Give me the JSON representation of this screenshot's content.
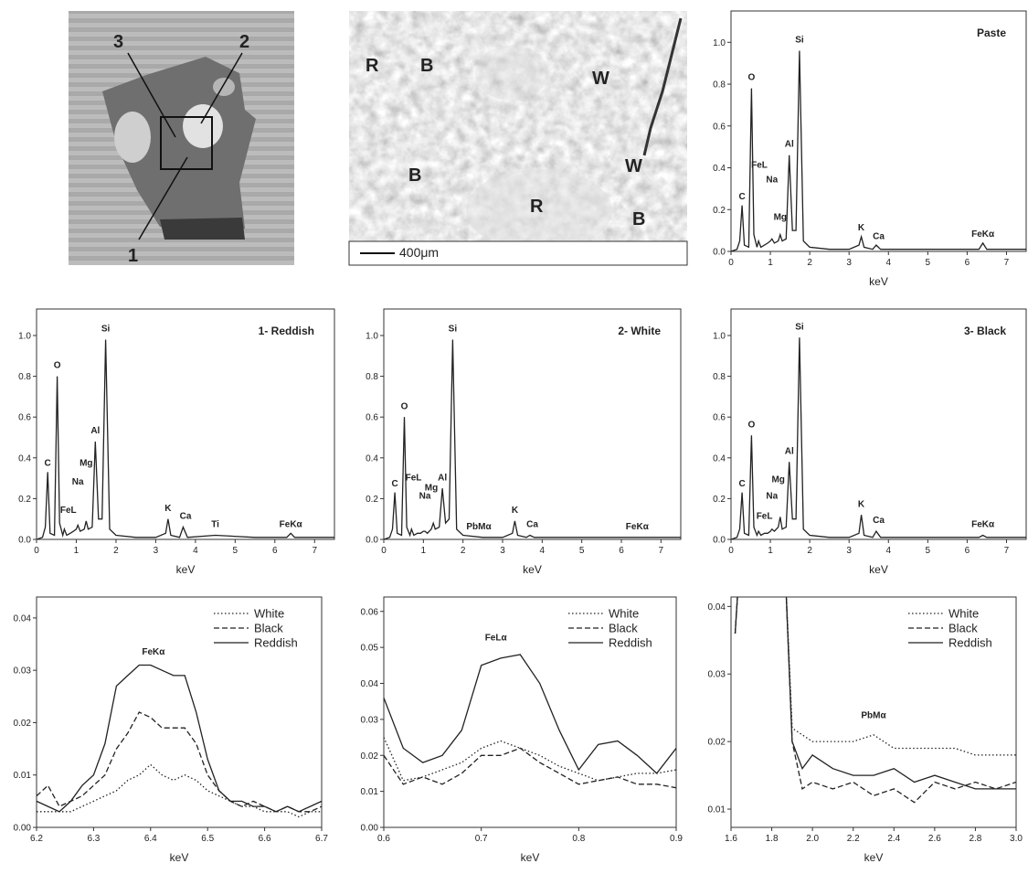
{
  "photo": {
    "labels": [
      "3",
      "2",
      "1"
    ]
  },
  "sem": {
    "labels": [
      "R",
      "B",
      "W",
      "B",
      "W",
      "R",
      "B"
    ],
    "scale_bar": "400μm"
  },
  "chart_data": [
    {
      "type": "line",
      "title": "Paste",
      "xlabel": "keV",
      "color": "#222",
      "xlim": [
        0,
        7.5
      ],
      "ylim": [
        0,
        1.15
      ],
      "xticks": [
        0,
        1,
        2,
        3,
        4,
        5,
        6,
        7
      ],
      "yticks": [
        {
          "value": 0,
          "label": "0.0"
        },
        0.2,
        0.4,
        0.6,
        0.8,
        {
          "value": 1,
          "label": "1.0"
        }
      ],
      "x": [
        0,
        0.15,
        0.22,
        0.28,
        0.34,
        0.45,
        0.52,
        0.58,
        0.66,
        0.7,
        0.76,
        0.85,
        0.93,
        1.0,
        1.04,
        1.1,
        1.2,
        1.25,
        1.3,
        1.4,
        1.48,
        1.56,
        1.65,
        1.74,
        1.84,
        2.0,
        2.5,
        3.0,
        3.25,
        3.31,
        3.38,
        3.6,
        3.69,
        3.8,
        4.5,
        5.5,
        6.3,
        6.4,
        6.5,
        7.0,
        7.5
      ],
      "values": [
        0,
        0.01,
        0.05,
        0.22,
        0.03,
        0.02,
        0.78,
        0.08,
        0.02,
        0.05,
        0.02,
        0.03,
        0.04,
        0.05,
        0.06,
        0.04,
        0.05,
        0.08,
        0.05,
        0.06,
        0.46,
        0.1,
        0.1,
        0.96,
        0.05,
        0.02,
        0.01,
        0.01,
        0.03,
        0.07,
        0.02,
        0.01,
        0.03,
        0.01,
        0.01,
        0.01,
        0.01,
        0.04,
        0.01,
        0.01,
        0.01
      ],
      "annotations": [
        {
          "text": "C",
          "x": 0.28,
          "y": 0.25
        },
        {
          "text": "O",
          "x": 0.52,
          "y": 0.82
        },
        {
          "text": "FeL",
          "x": 0.72,
          "y": 0.4
        },
        {
          "text": "Na",
          "x": 1.04,
          "y": 0.33
        },
        {
          "text": "Mg",
          "x": 1.25,
          "y": 0.15
        },
        {
          "text": "Al",
          "x": 1.48,
          "y": 0.5
        },
        {
          "text": "Si",
          "x": 1.74,
          "y": 1.0
        },
        {
          "text": "K",
          "x": 3.31,
          "y": 0.1
        },
        {
          "text": "Ca",
          "x": 3.75,
          "y": 0.06
        },
        {
          "text": "FeKα",
          "x": 6.4,
          "y": 0.07
        }
      ]
    },
    {
      "type": "line",
      "title": "1- Reddish",
      "xlabel": "keV",
      "color": "#222",
      "xlim": [
        0,
        7.5
      ],
      "ylim": [
        0,
        1.13
      ],
      "xticks": [
        0,
        1,
        2,
        3,
        4,
        5,
        6,
        7
      ],
      "yticks": [
        {
          "value": 0,
          "label": "0.0"
        },
        0.2,
        0.4,
        0.6,
        0.8,
        {
          "value": 1,
          "label": "1.0"
        }
      ],
      "x": [
        0,
        0.15,
        0.22,
        0.28,
        0.34,
        0.45,
        0.52,
        0.58,
        0.66,
        0.7,
        0.76,
        0.85,
        0.93,
        1.0,
        1.04,
        1.1,
        1.2,
        1.25,
        1.3,
        1.4,
        1.48,
        1.56,
        1.65,
        1.74,
        1.84,
        2.0,
        2.5,
        3.0,
        3.25,
        3.31,
        3.38,
        3.6,
        3.69,
        3.8,
        4.5,
        5.5,
        6.3,
        6.4,
        6.5,
        7.0,
        7.5
      ],
      "values": [
        0,
        0.01,
        0.06,
        0.33,
        0.03,
        0.02,
        0.8,
        0.08,
        0.02,
        0.05,
        0.02,
        0.03,
        0.04,
        0.05,
        0.07,
        0.04,
        0.05,
        0.09,
        0.05,
        0.06,
        0.48,
        0.1,
        0.1,
        0.98,
        0.05,
        0.02,
        0.01,
        0.01,
        0.03,
        0.1,
        0.02,
        0.01,
        0.06,
        0.01,
        0.02,
        0.01,
        0.01,
        0.03,
        0.01,
        0.01,
        0.01
      ],
      "annotations": [
        {
          "text": "C",
          "x": 0.28,
          "y": 0.36
        },
        {
          "text": "O",
          "x": 0.52,
          "y": 0.84
        },
        {
          "text": "FeL",
          "x": 0.8,
          "y": 0.13
        },
        {
          "text": "Na",
          "x": 1.04,
          "y": 0.27
        },
        {
          "text": "Mg",
          "x": 1.25,
          "y": 0.36
        },
        {
          "text": "Al",
          "x": 1.48,
          "y": 0.52
        },
        {
          "text": "Si",
          "x": 1.74,
          "y": 1.02
        },
        {
          "text": "K",
          "x": 3.31,
          "y": 0.14
        },
        {
          "text": "Ca",
          "x": 3.75,
          "y": 0.1
        },
        {
          "text": "Ti",
          "x": 4.5,
          "y": 0.06
        },
        {
          "text": "FeKα",
          "x": 6.4,
          "y": 0.06
        }
      ]
    },
    {
      "type": "line",
      "title": "2- White",
      "xlabel": "keV",
      "color": "#222",
      "xlim": [
        0,
        7.5
      ],
      "ylim": [
        0,
        1.13
      ],
      "xticks": [
        0,
        1,
        2,
        3,
        4,
        5,
        6,
        7
      ],
      "yticks": [
        {
          "value": 0,
          "label": "0.0"
        },
        0.2,
        0.4,
        0.6,
        0.8,
        {
          "value": 1,
          "label": "1.0"
        }
      ],
      "x": [
        0,
        0.15,
        0.22,
        0.28,
        0.34,
        0.45,
        0.52,
        0.58,
        0.66,
        0.7,
        0.76,
        0.85,
        0.93,
        1.0,
        1.04,
        1.1,
        1.2,
        1.25,
        1.3,
        1.4,
        1.48,
        1.56,
        1.65,
        1.74,
        1.84,
        2.0,
        2.5,
        3.0,
        3.25,
        3.31,
        3.38,
        3.6,
        3.69,
        3.8,
        4.5,
        5.5,
        6.3,
        6.4,
        6.5,
        7.0,
        7.5
      ],
      "values": [
        0,
        0.01,
        0.05,
        0.23,
        0.03,
        0.02,
        0.6,
        0.06,
        0.02,
        0.05,
        0.02,
        0.03,
        0.03,
        0.04,
        0.04,
        0.03,
        0.05,
        0.08,
        0.05,
        0.06,
        0.25,
        0.08,
        0.1,
        0.98,
        0.05,
        0.02,
        0.01,
        0.01,
        0.03,
        0.09,
        0.02,
        0.01,
        0.02,
        0.01,
        0.01,
        0.01,
        0.01,
        0.01,
        0.01,
        0.01,
        0.01
      ],
      "annotations": [
        {
          "text": "C",
          "x": 0.28,
          "y": 0.26
        },
        {
          "text": "O",
          "x": 0.52,
          "y": 0.64
        },
        {
          "text": "FeL",
          "x": 0.75,
          "y": 0.29
        },
        {
          "text": "Na",
          "x": 1.04,
          "y": 0.2
        },
        {
          "text": "Mg",
          "x": 1.2,
          "y": 0.24
        },
        {
          "text": "Al",
          "x": 1.48,
          "y": 0.29
        },
        {
          "text": "Si",
          "x": 1.74,
          "y": 1.02
        },
        {
          "text": "PbMα",
          "x": 2.4,
          "y": 0.05
        },
        {
          "text": "K",
          "x": 3.31,
          "y": 0.13
        },
        {
          "text": "Ca",
          "x": 3.75,
          "y": 0.06
        },
        {
          "text": "FeKα",
          "x": 6.4,
          "y": 0.05
        }
      ]
    },
    {
      "type": "line",
      "title": "3- Black",
      "xlabel": "keV",
      "color": "#222",
      "xlim": [
        0,
        7.5
      ],
      "ylim": [
        0,
        1.13
      ],
      "xticks": [
        0,
        1,
        2,
        3,
        4,
        5,
        6,
        7
      ],
      "yticks": [
        {
          "value": 0,
          "label": "0.0"
        },
        0.2,
        0.4,
        0.6,
        0.8,
        {
          "value": 1,
          "label": "1.0"
        }
      ],
      "x": [
        0,
        0.15,
        0.22,
        0.28,
        0.34,
        0.45,
        0.52,
        0.58,
        0.66,
        0.7,
        0.76,
        0.85,
        0.93,
        1.0,
        1.04,
        1.1,
        1.2,
        1.25,
        1.3,
        1.4,
        1.48,
        1.56,
        1.65,
        1.74,
        1.84,
        2.0,
        2.5,
        3.0,
        3.25,
        3.31,
        3.38,
        3.6,
        3.69,
        3.8,
        4.5,
        5.5,
        6.3,
        6.4,
        6.5,
        7.0,
        7.5
      ],
      "values": [
        0,
        0.01,
        0.05,
        0.23,
        0.03,
        0.02,
        0.51,
        0.06,
        0.02,
        0.04,
        0.02,
        0.03,
        0.03,
        0.04,
        0.05,
        0.04,
        0.06,
        0.11,
        0.05,
        0.06,
        0.38,
        0.1,
        0.1,
        0.99,
        0.05,
        0.02,
        0.01,
        0.01,
        0.03,
        0.12,
        0.02,
        0.01,
        0.04,
        0.01,
        0.01,
        0.01,
        0.01,
        0.02,
        0.01,
        0.01,
        0.01
      ],
      "annotations": [
        {
          "text": "C",
          "x": 0.28,
          "y": 0.26
        },
        {
          "text": "O",
          "x": 0.52,
          "y": 0.55
        },
        {
          "text": "FeL",
          "x": 0.85,
          "y": 0.1
        },
        {
          "text": "Na",
          "x": 1.04,
          "y": 0.2
        },
        {
          "text": "Mg",
          "x": 1.2,
          "y": 0.28
        },
        {
          "text": "Al",
          "x": 1.48,
          "y": 0.42
        },
        {
          "text": "Si",
          "x": 1.74,
          "y": 1.03
        },
        {
          "text": "K",
          "x": 3.31,
          "y": 0.16
        },
        {
          "text": "Ca",
          "x": 3.75,
          "y": 0.08
        },
        {
          "text": "FeKα",
          "x": 6.4,
          "y": 0.06
        }
      ]
    },
    {
      "type": "line",
      "xlabel": "keV",
      "xlim": [
        6.2,
        6.7
      ],
      "ylim": [
        0,
        0.044
      ],
      "legend": "upper right",
      "xticks": [
        6.2,
        6.3,
        6.4,
        6.5,
        6.6,
        6.7
      ],
      "yticks": [
        {
          "value": 0,
          "label": "0.00"
        },
        0.01,
        0.02,
        0.03,
        0.04
      ],
      "x": [
        6.2,
        6.22,
        6.24,
        6.26,
        6.28,
        6.3,
        6.32,
        6.34,
        6.36,
        6.38,
        6.4,
        6.42,
        6.44,
        6.46,
        6.48,
        6.5,
        6.52,
        6.54,
        6.56,
        6.58,
        6.6,
        6.62,
        6.64,
        6.66,
        6.68,
        6.7
      ],
      "series": [
        {
          "name": "White",
          "color": "#222",
          "style": "dotted",
          "values": [
            0.003,
            0.003,
            0.003,
            0.003,
            0.004,
            0.005,
            0.006,
            0.007,
            0.009,
            0.01,
            0.012,
            0.01,
            0.009,
            0.01,
            0.009,
            0.007,
            0.006,
            0.005,
            0.004,
            0.004,
            0.003,
            0.003,
            0.003,
            0.002,
            0.003,
            0.003
          ]
        },
        {
          "name": "Black",
          "color": "#222",
          "style": "dashed",
          "values": [
            0.006,
            0.008,
            0.004,
            0.005,
            0.006,
            0.008,
            0.01,
            0.015,
            0.018,
            0.022,
            0.021,
            0.019,
            0.019,
            0.019,
            0.016,
            0.01,
            0.007,
            0.005,
            0.004,
            0.005,
            0.004,
            0.003,
            0.004,
            0.003,
            0.003,
            0.004
          ]
        },
        {
          "name": "Reddish",
          "color": "#222",
          "style": "solid",
          "values": [
            0.005,
            0.004,
            0.003,
            0.005,
            0.008,
            0.01,
            0.016,
            0.027,
            0.029,
            0.031,
            0.031,
            0.03,
            0.029,
            0.029,
            0.022,
            0.013,
            0.007,
            0.005,
            0.005,
            0.004,
            0.004,
            0.003,
            0.004,
            0.003,
            0.004,
            0.005
          ]
        }
      ],
      "annotations": [
        {
          "text": "FeKα",
          "x": 6.405,
          "y": 0.033
        }
      ]
    },
    {
      "type": "line",
      "xlabel": "keV",
      "xlim": [
        0.6,
        0.9
      ],
      "ylim": [
        0,
        0.064
      ],
      "legend": "upper right",
      "xticks": [
        0.6,
        0.7,
        0.8,
        0.9
      ],
      "yticks": [
        {
          "value": 0,
          "label": "0.00"
        },
        0.01,
        0.02,
        0.03,
        0.04,
        0.05,
        0.06
      ],
      "x": [
        0.6,
        0.62,
        0.64,
        0.66,
        0.68,
        0.7,
        0.72,
        0.74,
        0.76,
        0.78,
        0.8,
        0.82,
        0.84,
        0.86,
        0.88,
        0.9
      ],
      "series": [
        {
          "name": "White",
          "color": "#222",
          "style": "dotted",
          "values": [
            0.025,
            0.013,
            0.014,
            0.016,
            0.018,
            0.022,
            0.024,
            0.022,
            0.02,
            0.017,
            0.015,
            0.013,
            0.014,
            0.015,
            0.015,
            0.016
          ]
        },
        {
          "name": "Black",
          "color": "#222",
          "style": "dashed",
          "values": [
            0.02,
            0.012,
            0.014,
            0.012,
            0.015,
            0.02,
            0.02,
            0.022,
            0.018,
            0.015,
            0.012,
            0.013,
            0.014,
            0.012,
            0.012,
            0.011
          ]
        },
        {
          "name": "Reddish",
          "color": "#222",
          "style": "solid",
          "values": [
            0.036,
            0.022,
            0.018,
            0.02,
            0.027,
            0.045,
            0.047,
            0.048,
            0.04,
            0.027,
            0.016,
            0.023,
            0.024,
            0.02,
            0.015,
            0.022
          ]
        }
      ],
      "annotations": [
        {
          "text": "FeLα",
          "x": 0.715,
          "y": 0.052
        }
      ]
    },
    {
      "type": "line",
      "xlabel": "keV",
      "xlim": [
        1.6,
        3.0
      ],
      "ylim": [
        0.0073,
        0.0414
      ],
      "legend": "upper right",
      "xticks": [
        1.6,
        1.8,
        {
          "value": 2,
          "label": "2.0"
        },
        2.2,
        2.4,
        2.6,
        2.8,
        {
          "value": 3,
          "label": "3.0"
        }
      ],
      "yticks": [
        0.01,
        0.02,
        0.03,
        0.04
      ],
      "x": [
        1.62,
        1.65,
        1.86,
        1.9,
        1.95,
        2.0,
        2.1,
        2.2,
        2.3,
        2.4,
        2.5,
        2.6,
        2.7,
        2.8,
        2.9,
        3.0
      ],
      "series": [
        {
          "name": "White",
          "color": "#222",
          "style": "dotted",
          "values": [
            0.036,
            0.05,
            0.05,
            0.022,
            0.021,
            0.02,
            0.02,
            0.02,
            0.021,
            0.019,
            0.019,
            0.019,
            0.019,
            0.018,
            0.018,
            0.018
          ]
        },
        {
          "name": "Black",
          "color": "#222",
          "style": "dashed",
          "values": [
            0.036,
            0.05,
            0.05,
            0.02,
            0.013,
            0.014,
            0.013,
            0.014,
            0.012,
            0.013,
            0.011,
            0.014,
            0.013,
            0.014,
            0.013,
            0.014
          ]
        },
        {
          "name": "Reddish",
          "color": "#222",
          "style": "solid",
          "values": [
            0.036,
            0.05,
            0.05,
            0.02,
            0.016,
            0.018,
            0.016,
            0.015,
            0.015,
            0.016,
            0.014,
            0.015,
            0.014,
            0.013,
            0.013,
            0.013
          ]
        }
      ],
      "annotations": [
        {
          "text": "PbMα",
          "x": 2.3,
          "y": 0.0235
        }
      ]
    }
  ]
}
